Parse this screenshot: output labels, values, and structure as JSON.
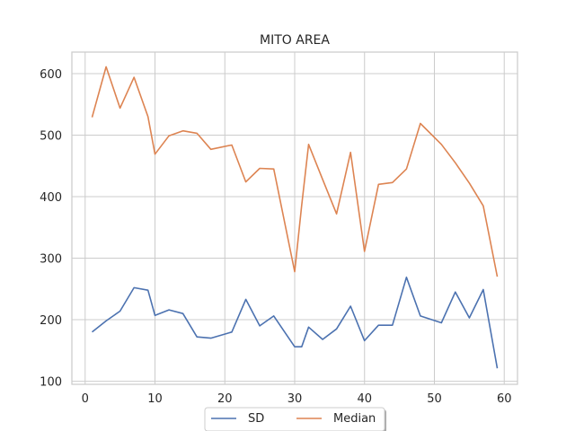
{
  "chart_data": {
    "type": "line",
    "title": "MITO AREA",
    "xlabel": "",
    "ylabel": "",
    "xlim": [
      -1.9,
      61.9
    ],
    "ylim": [
      95,
      635
    ],
    "xticks": [
      0,
      10,
      20,
      30,
      40,
      50,
      60
    ],
    "yticks": [
      100,
      200,
      300,
      400,
      500,
      600
    ],
    "grid": true,
    "legend_position": "bottom-center",
    "x": [
      1,
      3,
      5,
      7,
      9,
      10,
      12,
      14,
      16,
      18,
      21,
      23,
      25,
      27,
      30,
      31,
      32,
      34,
      36,
      38,
      40,
      42,
      44,
      46,
      48,
      51,
      53,
      55,
      57,
      59
    ],
    "series": [
      {
        "name": "SD",
        "color": "#4c72b0",
        "values": [
          180,
          198,
          214,
          252,
          248,
          207,
          216,
          210,
          172,
          170,
          180,
          233,
          190,
          206,
          156,
          156,
          188,
          168,
          185,
          222,
          166,
          191,
          191,
          269,
          206,
          195,
          245,
          203,
          249,
          121
        ]
      },
      {
        "name": "Median",
        "color": "#dd8452",
        "values": [
          529,
          611,
          544,
          594,
          530,
          469,
          499,
          507,
          503,
          477,
          484,
          424,
          446,
          445,
          278,
          386,
          485,
          428,
          372,
          472,
          311,
          420,
          423,
          445,
          519,
          485,
          455,
          422,
          385,
          270
        ]
      }
    ]
  }
}
